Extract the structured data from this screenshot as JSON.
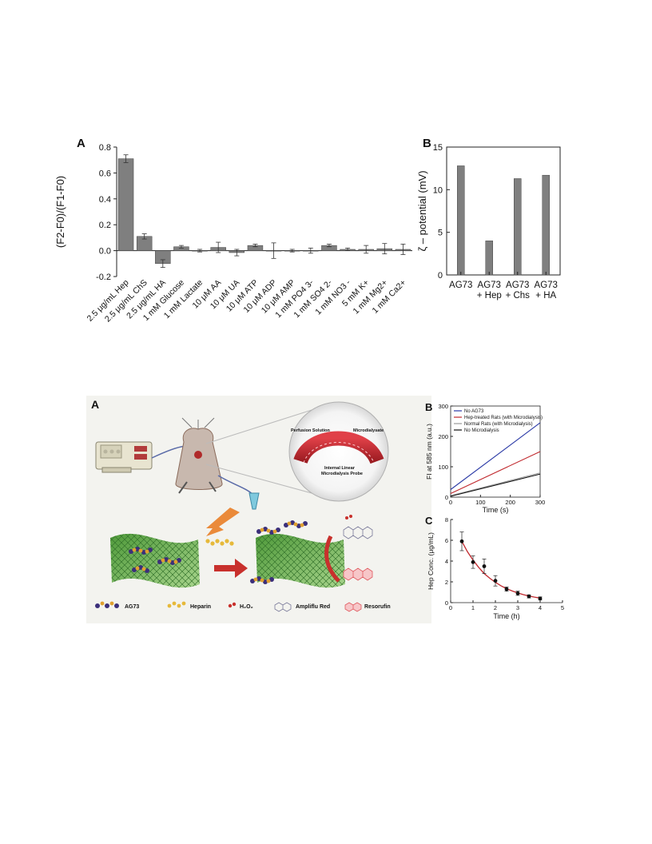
{
  "figure1": {
    "panel_a_letter": "A",
    "panel_b_letter": "B"
  },
  "figure2": {
    "panel_a_letter": "A",
    "panel_b_letter": "B",
    "panel_c_letter": "C",
    "diagram": {
      "bubble_labels": [
        "Perfusion Solution",
        "Microdialysate",
        "Internal Linear",
        "Microdialysis Probe"
      ],
      "legend": [
        "AG73",
        "Heparin",
        "H₂O₂",
        "Ampliflu Red",
        "Resorufin"
      ]
    }
  },
  "chart_data": [
    {
      "id": "fig1-A",
      "type": "bar",
      "ylabel": "(F2-F0)/(F1-F0)",
      "ylim": [
        -0.2,
        0.8
      ],
      "yticks": [
        "-0.2",
        "0.0",
        "0.2",
        "0.4",
        "0.6",
        "0.8"
      ],
      "categories": [
        "2.5 μg/mL Hep",
        "2.5 μg/mL ChS",
        "2.5 μg/mL HA",
        "1 mM Glucose",
        "1 mM Lactate",
        "10 μM AA",
        "10 μM UA",
        "10 μM ATP",
        "10 μM ADP",
        "10 μM AMP",
        "1 mM PO4 3-",
        "1 mM SO4 2-",
        "1 mM NO3 -",
        "5 mM K+",
        "1 mM Mg2+",
        "1 mM Ca2+"
      ],
      "values": [
        0.71,
        0.11,
        -0.1,
        0.03,
        0.0,
        0.025,
        -0.015,
        0.04,
        0.0,
        0.0,
        0.0,
        0.04,
        0.01,
        0.01,
        0.015,
        0.01
      ],
      "errors": [
        0.03,
        0.02,
        0.03,
        0.01,
        0.01,
        0.04,
        0.025,
        0.01,
        0.06,
        0.01,
        0.02,
        0.01,
        0.01,
        0.03,
        0.04,
        0.04
      ]
    },
    {
      "id": "fig1-B",
      "type": "bar",
      "ylabel": "ζ – potential (mV)",
      "ylim": [
        0,
        15
      ],
      "yticks": [
        "0",
        "5",
        "10",
        "15"
      ],
      "categories": [
        [
          "AG73"
        ],
        [
          "AG73",
          "+ Hep"
        ],
        [
          "AG73",
          "+ Chs"
        ],
        [
          "AG73",
          "+ HA"
        ]
      ],
      "values": [
        12.8,
        4.0,
        11.3,
        11.7
      ]
    },
    {
      "id": "fig2-B",
      "type": "line",
      "xlabel": "Time (s)",
      "ylabel": "FI at 585 nm (a.u.)",
      "xlim": [
        0,
        300
      ],
      "ylim": [
        0,
        300
      ],
      "xticks": [
        "0",
        "100",
        "200",
        "300"
      ],
      "yticks": [
        "0",
        "100",
        "200",
        "300"
      ],
      "legend_position": "top-left",
      "series": [
        {
          "name": "No AG73",
          "color": "#2b3aa6",
          "x": [
            0,
            300
          ],
          "y": [
            25,
            245
          ]
        },
        {
          "name": "Hep-treated Rats (with Microdialysis)",
          "color": "#c0282d",
          "x": [
            0,
            300
          ],
          "y": [
            12,
            150
          ]
        },
        {
          "name": "Normal Rats (with Microdialysis)",
          "color": "#9a9a9a",
          "x": [
            0,
            300
          ],
          "y": [
            5,
            80
          ]
        },
        {
          "name": "No Microdialysis",
          "color": "#111111",
          "x": [
            0,
            300
          ],
          "y": [
            3,
            76
          ]
        }
      ]
    },
    {
      "id": "fig2-C",
      "type": "scatter",
      "xlabel": "Time (h)",
      "ylabel": "Hep Conc. (μg/mL)",
      "xlim": [
        0,
        5
      ],
      "ylim": [
        0,
        8
      ],
      "xticks": [
        "0",
        "1",
        "2",
        "3",
        "4",
        "5"
      ],
      "yticks": [
        "0",
        "2",
        "4",
        "6",
        "8"
      ],
      "points": [
        {
          "x": 0.5,
          "y": 5.9,
          "err": 0.9
        },
        {
          "x": 1.0,
          "y": 3.9,
          "err": 0.6
        },
        {
          "x": 1.5,
          "y": 3.5,
          "err": 0.7
        },
        {
          "x": 2.0,
          "y": 2.1,
          "err": 0.5
        },
        {
          "x": 2.5,
          "y": 1.3,
          "err": 0.2
        },
        {
          "x": 3.0,
          "y": 0.9,
          "err": 0.2
        },
        {
          "x": 3.5,
          "y": 0.6,
          "err": 0.15
        },
        {
          "x": 4.0,
          "y": 0.4,
          "err": 0.15
        }
      ],
      "fit": {
        "color": "#c0282d",
        "x": [
          0.5,
          0.75,
          1.0,
          1.25,
          1.5,
          1.75,
          2.0,
          2.25,
          2.5,
          2.75,
          3.0,
          3.25,
          3.5,
          3.75,
          4.0
        ],
        "y": [
          5.9,
          4.9,
          4.1,
          3.4,
          2.8,
          2.35,
          1.95,
          1.62,
          1.35,
          1.12,
          0.93,
          0.77,
          0.64,
          0.53,
          0.44
        ]
      }
    }
  ]
}
